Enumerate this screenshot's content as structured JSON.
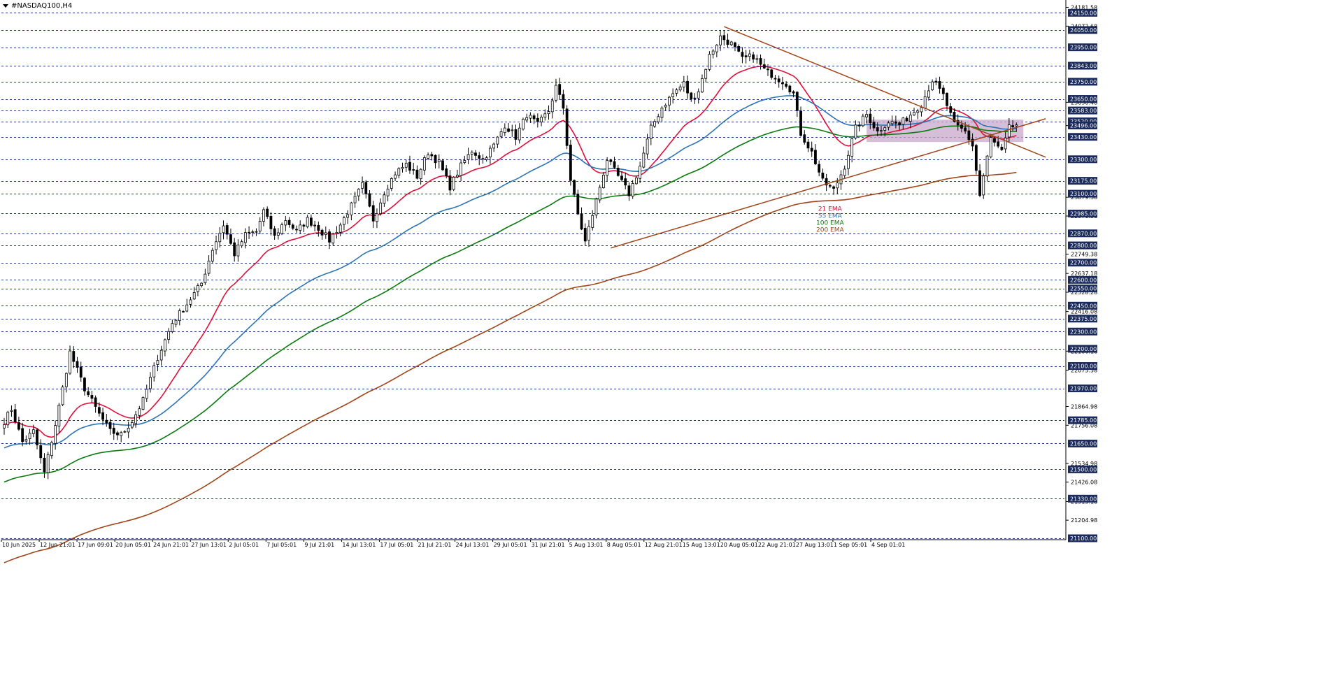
{
  "chart_title": "#NASDAQ100,H4",
  "colors": {
    "background": "#ffffff",
    "grid_line": "#1f3a7a",
    "candle": "#000000",
    "ema21": "#e0103a",
    "ema55": "#2e74b5",
    "ema100": "#0a7a10",
    "ema200": "#a0461a",
    "trendline": "#a0461a",
    "zone": "#c8a8cc",
    "price_tag_bg": "#1a2a5a",
    "price_tag_text": "#ffffff"
  },
  "icons": {
    "title_menu": "triangle-down-icon"
  },
  "chart_data": {
    "type": "candlestick",
    "symbol": "#NASDAQ100",
    "timeframe": "H4",
    "ylim": [
      21100,
      24200
    ],
    "grid": true,
    "price_axis_side": "right",
    "x_tick_labels": [
      "10 Jun 2025",
      "12 Jun 21:01",
      "17 Jun 09:01",
      "20 Jun 05:01",
      "24 Jun 21:01",
      "27 Jun 13:01",
      "2 Jul 05:01",
      "7 Jul 05:01",
      "9 Jul 21:01",
      "14 Jul 13:01",
      "17 Jul 05:01",
      "21 Jul 21:01",
      "24 Jul 13:01",
      "29 Jul 05:01",
      "31 Jul 21:01",
      "5 Aug 13:01",
      "8 Aug 05:01",
      "12 Aug 21:01",
      "15 Aug 13:01",
      "20 Aug 05:01",
      "22 Aug 21:01",
      "27 Aug 13:01",
      "1 Sep 05:01",
      "4 Sep 01:01"
    ],
    "level_lines": [
      24150.0,
      24050.0,
      23950.0,
      23843.0,
      23750.0,
      23650.0,
      23583.0,
      23520.0,
      23430.0,
      23300.0,
      23175.0,
      23100.0,
      22985.0,
      22870.0,
      22800.0,
      22700.0,
      22600.0,
      22550.0,
      22450.0,
      22375.0,
      22300.0,
      22200.0,
      22100.0,
      21970.0,
      21785.0,
      21650.0,
      21500.0,
      21330.0,
      21100.0
    ],
    "highlighted_levels": [
      "24150.00",
      "24050.00",
      "23950.00",
      "23843.00",
      "23750.00",
      "23650.00",
      "23583.00",
      "23520.00",
      "23496.00",
      "23430.00",
      "23300.00",
      "23175.00",
      "23100.00",
      "22985.00",
      "22870.00",
      "22800.00",
      "22700.00",
      "22600.00",
      "22550.00",
      "22450.00",
      "22375.00",
      "22300.00",
      "22200.00",
      "22100.00",
      "21970.00",
      "21785.00",
      "21650.00",
      "21500.00",
      "21330.00",
      "21100.00"
    ],
    "axis_price_labels": [
      "24181.58",
      "24072.68",
      "23630.48",
      "23495.36",
      "23079.38",
      "22970.58",
      "22749.38",
      "22637.18",
      "22528.28",
      "22416.08",
      "22186.18",
      "22075.58",
      "21864.98",
      "21756.08",
      "21534.98",
      "21426.08",
      "21313.18",
      "21204.98"
    ],
    "legend": [
      {
        "label": "21 EMA",
        "color": "#e0103a"
      },
      {
        "label": "55 EMA",
        "color": "#2e74b5"
      },
      {
        "label": "100 EMA",
        "color": "#0a7a10"
      },
      {
        "label": "200 EMA",
        "color": "#a0461a"
      }
    ],
    "keypoints": [
      [
        0,
        21780
      ],
      [
        2,
        21850
      ],
      [
        5,
        21660
      ],
      [
        8,
        21720
      ],
      [
        11,
        21480
      ],
      [
        14,
        21760
      ],
      [
        18,
        22180
      ],
      [
        22,
        21970
      ],
      [
        26,
        21820
      ],
      [
        29,
        21720
      ],
      [
        32,
        21700
      ],
      [
        35,
        21780
      ],
      [
        38,
        21900
      ],
      [
        42,
        22150
      ],
      [
        46,
        22350
      ],
      [
        50,
        22460
      ],
      [
        54,
        22580
      ],
      [
        57,
        22780
      ],
      [
        60,
        22920
      ],
      [
        63,
        22750
      ],
      [
        66,
        22860
      ],
      [
        69,
        22880
      ],
      [
        71,
        23000
      ],
      [
        74,
        22850
      ],
      [
        77,
        22950
      ],
      [
        80,
        22880
      ],
      [
        83,
        22950
      ],
      [
        86,
        22900
      ],
      [
        89,
        22830
      ],
      [
        92,
        22920
      ],
      [
        95,
        23030
      ],
      [
        98,
        23150
      ],
      [
        101,
        22950
      ],
      [
        104,
        23110
      ],
      [
        107,
        23220
      ],
      [
        110,
        23270
      ],
      [
        113,
        23200
      ],
      [
        116,
        23340
      ],
      [
        119,
        23280
      ],
      [
        122,
        23140
      ],
      [
        125,
        23260
      ],
      [
        128,
        23350
      ],
      [
        131,
        23300
      ],
      [
        134,
        23380
      ],
      [
        137,
        23500
      ],
      [
        140,
        23430
      ],
      [
        143,
        23560
      ],
      [
        146,
        23500
      ],
      [
        149,
        23580
      ],
      [
        151,
        23720
      ],
      [
        153,
        23600
      ],
      [
        155,
        23180
      ],
      [
        157,
        22980
      ],
      [
        159,
        22820
      ],
      [
        162,
        23060
      ],
      [
        165,
        23300
      ],
      [
        168,
        23200
      ],
      [
        171,
        23100
      ],
      [
        174,
        23260
      ],
      [
        177,
        23480
      ],
      [
        180,
        23600
      ],
      [
        183,
        23680
      ],
      [
        186,
        23740
      ],
      [
        188,
        23640
      ],
      [
        190,
        23700
      ],
      [
        193,
        23900
      ],
      [
        196,
        24010
      ],
      [
        199,
        23970
      ],
      [
        202,
        23880
      ],
      [
        205,
        23900
      ],
      [
        208,
        23820
      ],
      [
        211,
        23780
      ],
      [
        214,
        23740
      ],
      [
        216,
        23680
      ],
      [
        218,
        23450
      ],
      [
        221,
        23340
      ],
      [
        224,
        23170
      ],
      [
        227,
        23120
      ],
      [
        230,
        23260
      ],
      [
        233,
        23480
      ],
      [
        236,
        23560
      ],
      [
        239,
        23460
      ],
      [
        242,
        23520
      ],
      [
        245,
        23500
      ],
      [
        248,
        23560
      ],
      [
        251,
        23620
      ],
      [
        254,
        23760
      ],
      [
        257,
        23670
      ],
      [
        260,
        23500
      ],
      [
        263,
        23460
      ],
      [
        265,
        23380
      ],
      [
        267,
        23090
      ],
      [
        270,
        23420
      ],
      [
        273,
        23340
      ],
      [
        275,
        23480
      ],
      [
        277,
        23500
      ]
    ]
  },
  "chart_annotations": {
    "zone": {
      "from_index": 236,
      "to_index": 277,
      "low": 23400,
      "high": 23530
    },
    "trendline_upper": {
      "p1": [
        197,
        24070
      ],
      "p2": [
        285,
        23312
      ]
    },
    "trendline_lower": {
      "p1": [
        166,
        22785
      ],
      "p2": [
        285,
        23535
      ]
    }
  }
}
